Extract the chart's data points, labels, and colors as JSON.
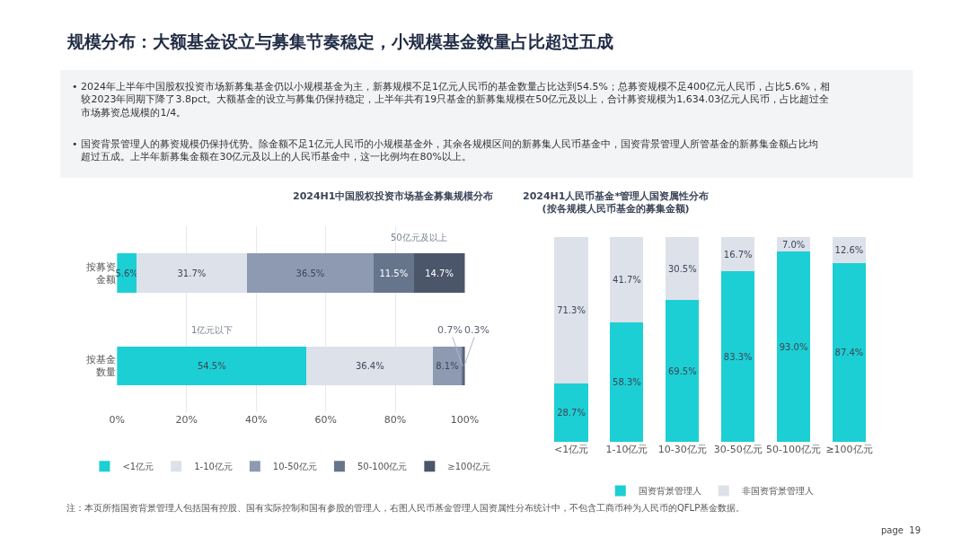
{
  "chart_data": [
    {
      "type": "bar",
      "orientation": "horizontal",
      "stacked": true,
      "title": "2024H1中国股权投资市场基金募集规模分布",
      "categories": [
        "按募资金额",
        "按基金数量"
      ],
      "series": [
        {
          "name": "<1亿元",
          "color": "#1ccfd4",
          "values": [
            5.6,
            54.5
          ],
          "value_labels": [
            "5.6%",
            "54.5%"
          ]
        },
        {
          "name": "1-10亿元",
          "color": "#dde1ea",
          "values": [
            31.7,
            36.4
          ],
          "value_labels": [
            "31.7%",
            "36.4%"
          ]
        },
        {
          "name": "10-50亿元",
          "color": "#8d9ab2",
          "values": [
            36.5,
            8.1
          ],
          "value_labels": [
            "36.5%",
            "8.1%"
          ]
        },
        {
          "name": "50-100亿元",
          "color": "#66748c",
          "values": [
            11.5,
            0.7
          ],
          "value_labels": [
            "11.5%",
            "0.7%"
          ]
        },
        {
          "name": "≥100亿元",
          "color": "#4b566a",
          "values": [
            14.7,
            0.3
          ],
          "value_labels": [
            "14.7%",
            "0.3%"
          ]
        }
      ],
      "xlim": [
        0,
        100
      ],
      "xticks": [
        {
          "value": 0,
          "label": "0%"
        },
        {
          "value": 20,
          "label": "20%"
        },
        {
          "value": 40,
          "label": "40%"
        },
        {
          "value": 60,
          "label": "60%"
        },
        {
          "value": 80,
          "label": "80%"
        },
        {
          "value": 100,
          "label": "100%"
        }
      ],
      "grid": "x",
      "legend": "bottom",
      "annotations": [
        "规模分布：大额基金设立与募集节奏稳定，小规模基金数量占比超过五成",
        "• 2024年上半年中国股权投资市场新募集基金仍以小规模基金为主，新募规模不足1亿元人民币的基金数量占比达到54.5%；总募资规模不足400亿元人民币，占比5.6%，相较2023年同期下降了3.8pct。大额基金的设立与募集仍保持稳定，上半年共有19只基金的新募集规模在50亿元及以上，合计募资规模为1,634.03亿元人民币，占比超过全市场募资总规模的1/4。",
        "• 国资背景管理人的募资规模仍保持优势。除金额不足1亿元人民币的小规模基金外，其余各规模区间的新募集人民币基金中，国资背景管理人所管基金的新募集金额占比均超过五成。上半年新募集金额在30亿元及以上的人民币基金中，这一比例均在80%以上。",
        "注：本页所指国资背景管理人包括国有控股、国有实际控制和国有参股的管理人，右图人民币基金管理人国资属性分布统计中，不包含工商币种为人民币的QFLP基金数据。",
        "page  19",
        "50亿元及以上",
        "1亿元以下"
      ]
    },
    {
      "type": "bar",
      "stacked": true,
      "title": "2024H1人民币基金*管理人国资属性分布\n(按各规模人民币基金的募集金额)",
      "categories": [
        "<1亿元",
        "1-10亿元",
        "10-30亿元",
        "30-50亿元",
        "50-100亿元",
        "≥100亿元"
      ],
      "series": [
        {
          "name": "国资背景管理人",
          "color": "#1ccfd4",
          "values": [
            28.7,
            58.3,
            69.5,
            83.3,
            93.0,
            87.4
          ],
          "value_labels": [
            "28.7%",
            "58.3%",
            "69.5%",
            "83.3%",
            "93.0%",
            "87.4%"
          ]
        },
        {
          "name": "非国资背景管理人",
          "color": "#dde1ea",
          "values": [
            71.3,
            41.7,
            30.5,
            16.7,
            7.0,
            12.6
          ],
          "value_labels": [
            "71.3%",
            "41.7%",
            "30.5%",
            "16.7%",
            "7.0%",
            "12.6%"
          ]
        }
      ],
      "legend": "bottom"
    }
  ]
}
